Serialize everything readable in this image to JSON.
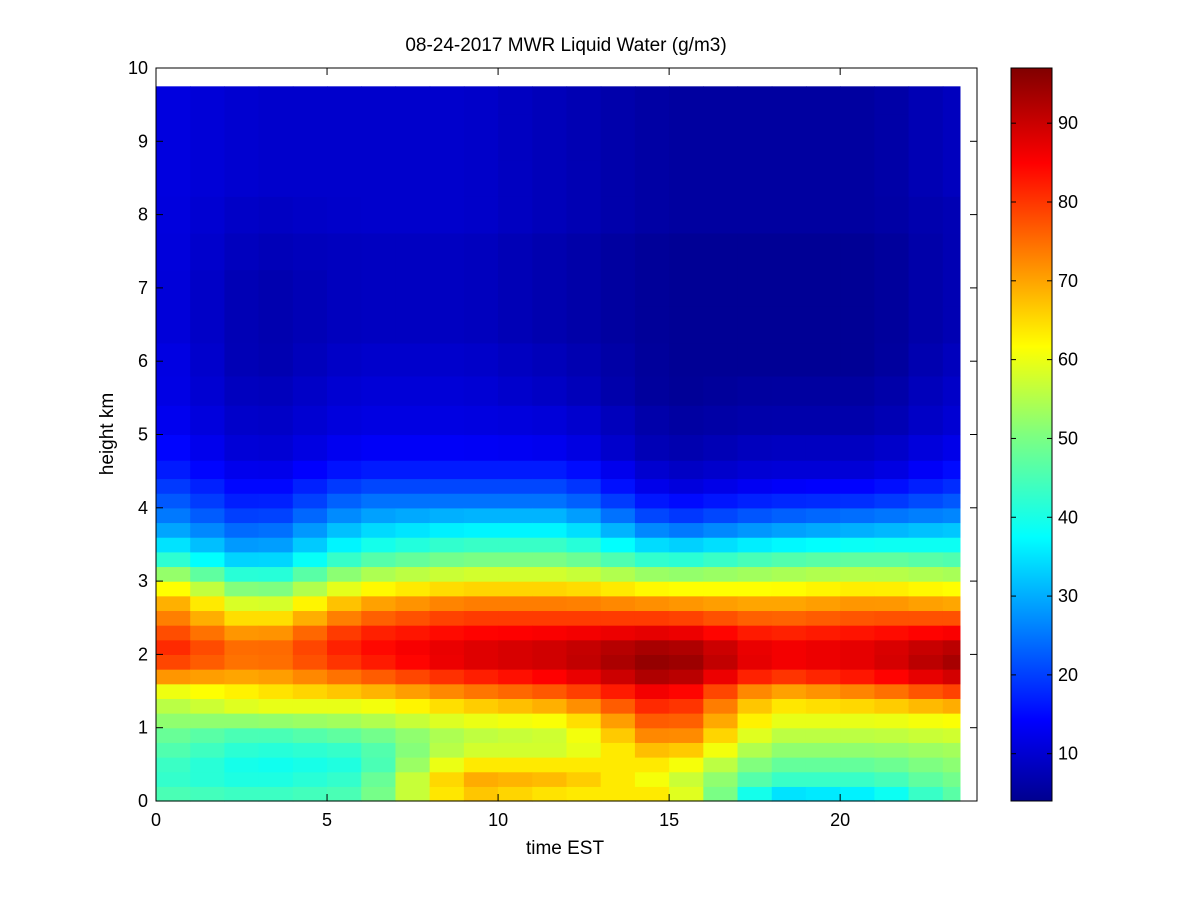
{
  "chart_data": {
    "type": "heatmap",
    "title": "08-24-2017 MWR Liquid Water (g/m3)",
    "xlabel": "time EST",
    "ylabel": "height km",
    "xlim": [
      0,
      24
    ],
    "ylim": [
      0,
      10
    ],
    "xticks": [
      0,
      5,
      10,
      15,
      20
    ],
    "yticks": [
      0,
      1,
      2,
      3,
      4,
      5,
      6,
      7,
      8,
      9,
      10
    ],
    "colorbar": {
      "colormap": "jet",
      "range": [
        4,
        97
      ],
      "ticks": [
        10,
        20,
        30,
        40,
        50,
        60,
        70,
        80,
        90
      ]
    },
    "grid": false,
    "time_columns": [
      0.0,
      1.0,
      2.0,
      3.0,
      4.0,
      5.0,
      6.0,
      7.0,
      8.0,
      9.0,
      10.0,
      11.0,
      12.0,
      13.0,
      14.0,
      15.0,
      16.0,
      17.0,
      18.0,
      19.0,
      20.0,
      21.0,
      22.0,
      23.0,
      23.5
    ],
    "height_profile_km": [
      0.1,
      0.3,
      0.5,
      0.7,
      0.9,
      1.1,
      1.3,
      1.5,
      1.7,
      1.9,
      2.1,
      2.3,
      2.5,
      2.7,
      2.9,
      3.1,
      3.3,
      3.5,
      3.7,
      3.9,
      4.1,
      4.3,
      4.5,
      4.8,
      5.2,
      5.6,
      6.0,
      6.5,
      7.0,
      7.5,
      8.0,
      8.5,
      9.0,
      9.75
    ],
    "profiles": [
      {
        "time": 0,
        "liquid_water": [
          46,
          44,
          45,
          47,
          49,
          52,
          55,
          60,
          72,
          80,
          83,
          80,
          76,
          72,
          65,
          55,
          45,
          38,
          32,
          28,
          25,
          22,
          19,
          17,
          15,
          14,
          14,
          13,
          13,
          13,
          13,
          13,
          13,
          13
        ]
      },
      {
        "time": 3,
        "liquid_water": [
          44,
          41,
          40,
          42,
          45,
          52,
          60,
          64,
          70,
          74,
          74,
          70,
          63,
          56,
          48,
          40,
          33,
          28,
          24,
          20,
          17,
          15,
          13,
          11,
          10,
          9,
          8,
          8,
          8,
          9,
          10,
          11,
          11,
          11
        ]
      },
      {
        "time": 6,
        "liquid_water": [
          46,
          44,
          42,
          44,
          48,
          54,
          60,
          68,
          76,
          82,
          84,
          82,
          76,
          70,
          62,
          54,
          46,
          40,
          35,
          30,
          26,
          22,
          18,
          15,
          13,
          12,
          11,
          10,
          10,
          10,
          11,
          11,
          11,
          11
        ]
      },
      {
        "time": 9,
        "liquid_water": [
          68,
          70,
          64,
          58,
          56,
          60,
          66,
          74,
          82,
          88,
          88,
          85,
          80,
          74,
          66,
          58,
          50,
          44,
          38,
          32,
          26,
          22,
          18,
          15,
          13,
          12,
          11,
          10,
          10,
          10,
          11,
          11,
          11,
          11
        ]
      },
      {
        "time": 12,
        "liquid_water": [
          64,
          68,
          64,
          58,
          58,
          62,
          70,
          78,
          86,
          90,
          90,
          86,
          80,
          74,
          66,
          58,
          50,
          44,
          38,
          32,
          26,
          22,
          18,
          14,
          12,
          10,
          9,
          8,
          8,
          8,
          9,
          9,
          9,
          9
        ]
      },
      {
        "time": 15,
        "liquid_water": [
          64,
          60,
          64,
          70,
          76,
          80,
          84,
          88,
          94,
          96,
          94,
          88,
          80,
          72,
          62,
          52,
          42,
          34,
          26,
          20,
          16,
          12,
          10,
          8,
          7,
          6,
          6,
          6,
          6,
          6,
          7,
          7,
          7,
          7
        ]
      },
      {
        "time": 18,
        "liquid_water": [
          36,
          44,
          48,
          52,
          56,
          60,
          64,
          70,
          80,
          86,
          86,
          82,
          76,
          70,
          62,
          54,
          46,
          38,
          30,
          24,
          19,
          15,
          12,
          10,
          8,
          7,
          6,
          6,
          6,
          6,
          7,
          7,
          7,
          7
        ]
      },
      {
        "time": 21,
        "liquid_water": [
          38,
          44,
          48,
          52,
          56,
          60,
          66,
          74,
          84,
          88,
          88,
          84,
          78,
          72,
          64,
          56,
          48,
          40,
          32,
          26,
          20,
          16,
          12,
          10,
          8,
          7,
          6,
          6,
          6,
          6,
          7,
          7,
          7,
          7
        ]
      },
      {
        "time": 23.5,
        "liquid_water": [
          48,
          50,
          52,
          54,
          58,
          62,
          70,
          80,
          90,
          94,
          92,
          86,
          78,
          70,
          62,
          54,
          46,
          40,
          34,
          28,
          24,
          20,
          17,
          14,
          12,
          11,
          10,
          9,
          9,
          9,
          9,
          10,
          10,
          10
        ]
      }
    ]
  }
}
